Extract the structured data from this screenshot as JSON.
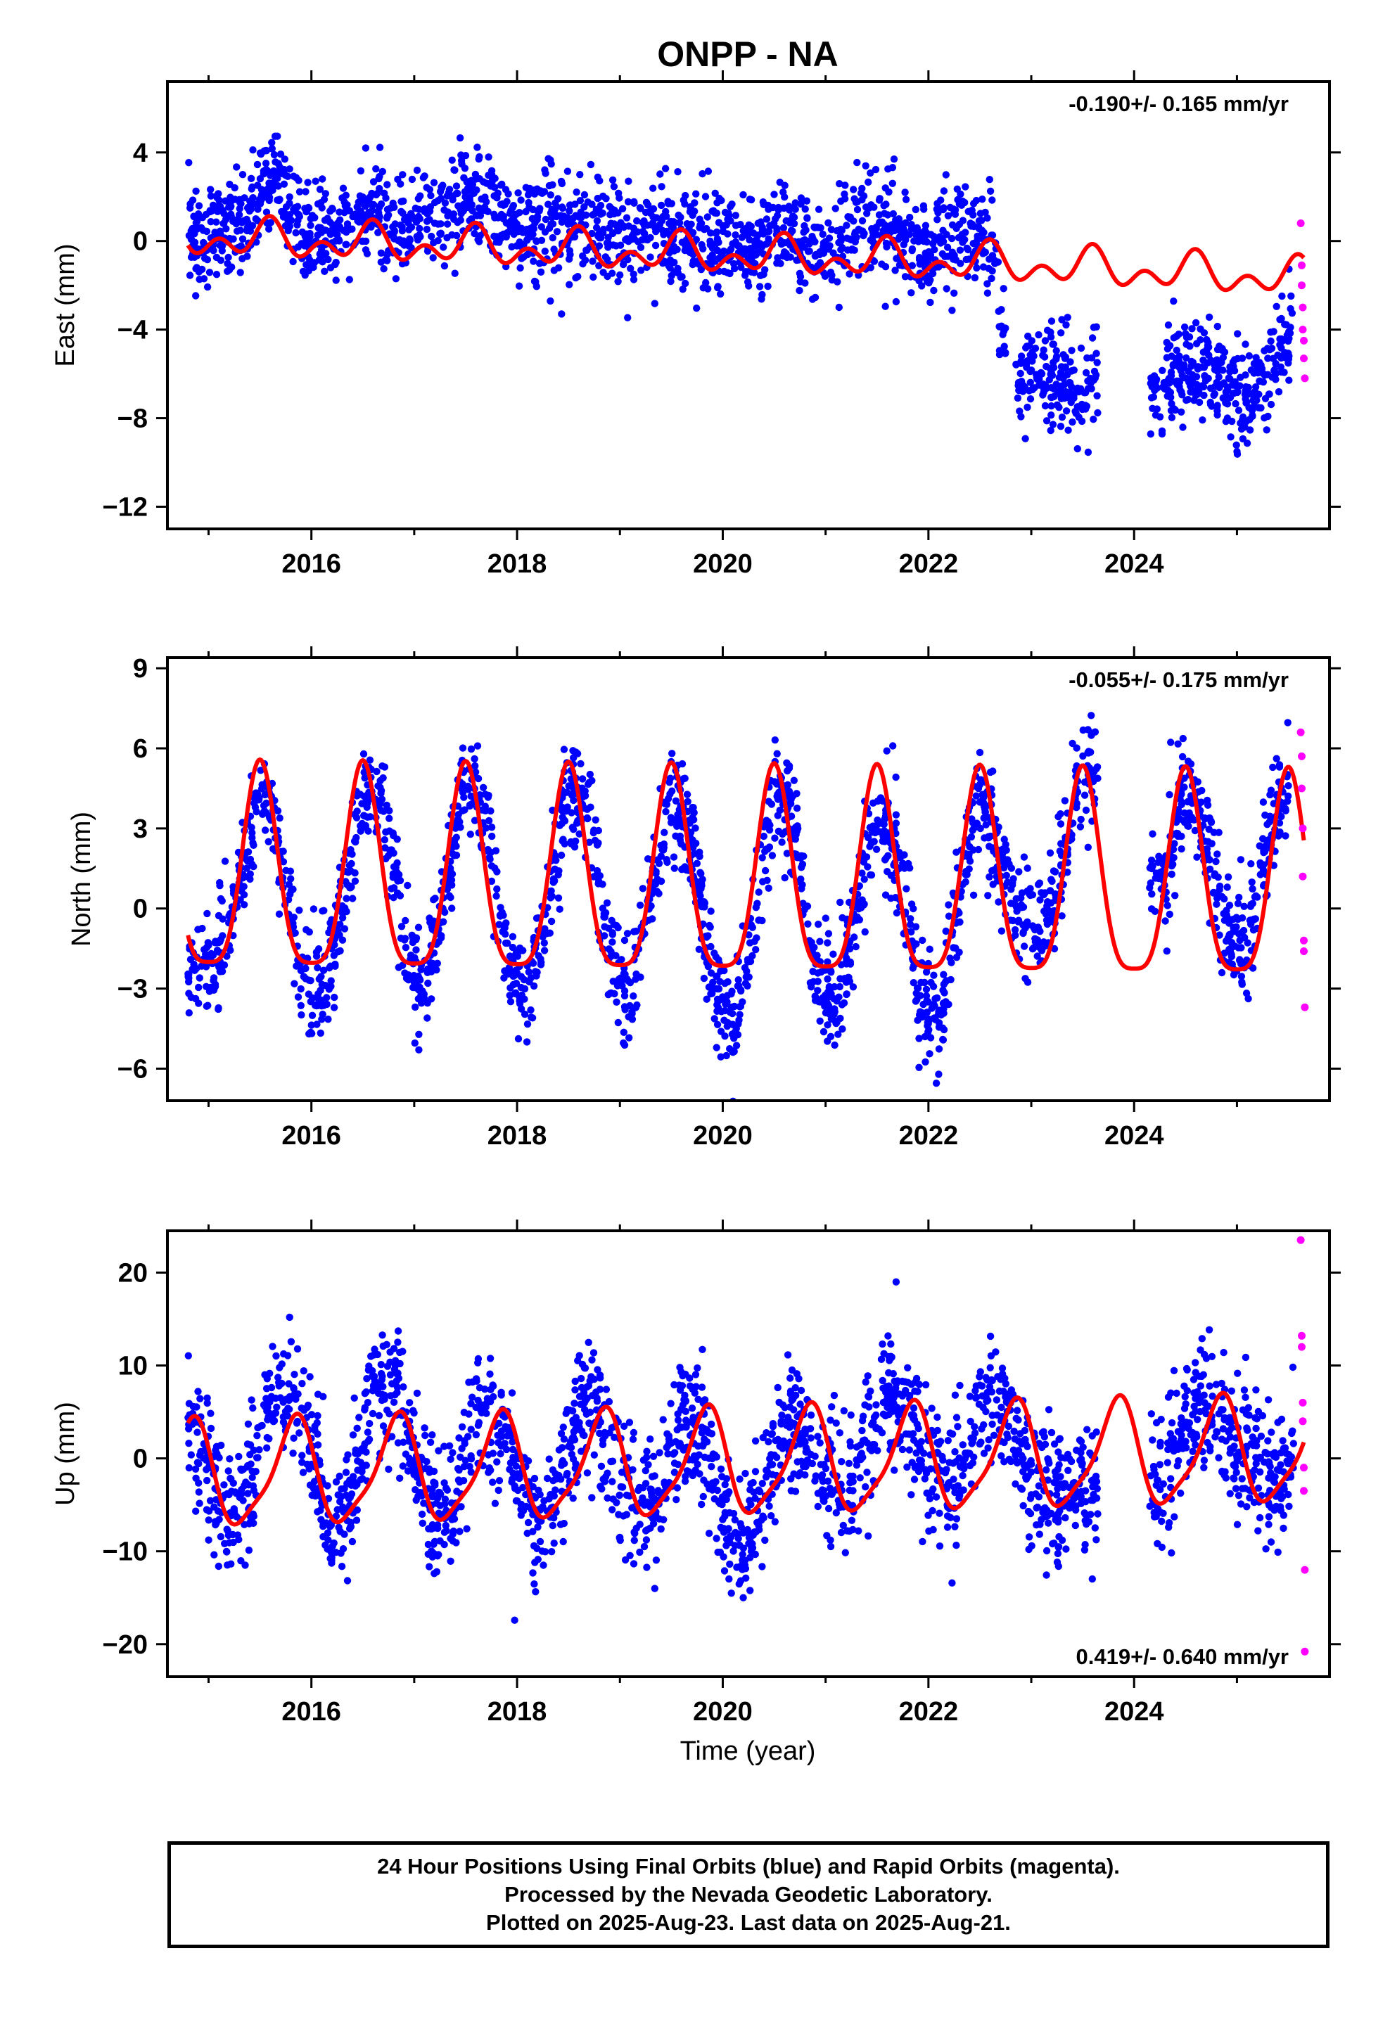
{
  "title": "ONPP - NA",
  "colors": {
    "final": "#0000ff",
    "rapid": "#ff00ff",
    "model": "#ff0000",
    "axis": "#000000"
  },
  "xlabel": "Time (year)",
  "footer": {
    "line1": "24 Hour Positions Using Final Orbits (blue) and Rapid Orbits (magenta).",
    "line2": "Processed by the Nevada Geodetic Laboratory.",
    "line3": "Plotted on 2025-Aug-23. Last data on 2025-Aug-21."
  },
  "chart_data": [
    {
      "type": "scatter",
      "ylabel": "East (mm)",
      "rate_label": "-0.190+/- 0.165 mm/yr",
      "rate_position": "top-right",
      "xlim": [
        2014.6,
        2025.9
      ],
      "ylim": [
        -13.0,
        7.2
      ],
      "x_ticks": [
        2016,
        2018,
        2020,
        2022,
        2024
      ],
      "y_ticks": [
        4,
        0,
        -4,
        -8,
        -12
      ],
      "series": [
        {
          "kind": "final",
          "x": [
            2014.8,
            2015.0,
            2015.2,
            2015.4,
            2015.55,
            2015.65,
            2015.8,
            2016.0,
            2016.2,
            2016.4,
            2016.6,
            2016.8,
            2017.0,
            2017.2,
            2017.4,
            2017.6,
            2017.8,
            2018.0,
            2018.2,
            2018.4,
            2018.6,
            2018.8,
            2019.0,
            2019.2,
            2019.4,
            2019.6,
            2019.8,
            2020.0,
            2020.2,
            2020.4,
            2020.6,
            2020.8,
            2021.0,
            2021.2,
            2021.4,
            2021.6,
            2021.8,
            2022.0,
            2022.2,
            2022.4,
            2022.6,
            2022.8,
            2023.0,
            2023.2,
            2023.4,
            2023.6,
            2024.2,
            2024.4,
            2024.6,
            2024.8,
            2025.0,
            2025.2,
            2025.4,
            2025.55
          ],
          "y": [
            0.5,
            0.3,
            0.6,
            1.0,
            2.5,
            3.0,
            1.5,
            0.0,
            0.4,
            0.8,
            1.6,
            0.5,
            0.8,
            1.2,
            1.5,
            2.0,
            0.8,
            0.3,
            0.5,
            1.0,
            0.5,
            0.2,
            0.3,
            0.4,
            0.6,
            0.2,
            0.1,
            0.0,
            -0.2,
            0.3,
            0.2,
            -0.3,
            -0.2,
            0.4,
            0.6,
            0.8,
            0.2,
            -0.5,
            0.6,
            0.5,
            0.3,
            -6.0,
            -6.3,
            -6.2,
            -6.5,
            -6.3,
            -6.8,
            -6.0,
            -5.8,
            -6.5,
            -7.0,
            -6.8,
            -5.0,
            -3.5
          ],
          "spread": 1.4
        },
        {
          "kind": "rapid",
          "x": [
            2025.62,
            2025.63,
            2025.63,
            2025.64,
            2025.64,
            2025.65,
            2025.65,
            2025.66
          ],
          "y": [
            0.8,
            -1.1,
            -2.0,
            -3.0,
            -4.0,
            -4.5,
            -5.3,
            -6.2
          ]
        },
        {
          "kind": "model",
          "offset": [
            [
              2014.8,
              0.15
            ],
            [
              2022.8,
              -1.05
            ],
            [
              2025.65,
              -1.7
            ]
          ],
          "amp1": 0.55,
          "phase1": 2015.58,
          "amp2": 0.55,
          "phase2": 2015.6
        }
      ]
    },
    {
      "type": "scatter",
      "ylabel": "North (mm)",
      "rate_label": "-0.055+/- 0.175 mm/yr",
      "rate_position": "top-right",
      "xlim": [
        2014.6,
        2025.9
      ],
      "ylim": [
        -7.2,
        9.4
      ],
      "x_ticks": [
        2016,
        2018,
        2020,
        2022,
        2024
      ],
      "y_ticks": [
        9,
        6,
        3,
        0,
        -3,
        -6
      ],
      "series": [
        {
          "kind": "final",
          "x": [
            2014.8,
            2015.0,
            2015.2,
            2015.4,
            2015.5,
            2015.7,
            2015.9,
            2016.1,
            2016.3,
            2016.5,
            2016.7,
            2016.9,
            2017.1,
            2017.3,
            2017.5,
            2017.7,
            2017.9,
            2018.1,
            2018.3,
            2018.5,
            2018.7,
            2018.9,
            2019.1,
            2019.3,
            2019.5,
            2019.7,
            2019.9,
            2020.1,
            2020.3,
            2020.5,
            2020.7,
            2020.9,
            2021.1,
            2021.3,
            2021.5,
            2021.7,
            2021.9,
            2022.1,
            2022.3,
            2022.5,
            2022.7,
            2022.9,
            2023.1,
            2023.3,
            2023.5,
            2024.3,
            2024.5,
            2024.7,
            2024.9,
            2025.1,
            2025.4,
            2025.5
          ],
          "y": [
            -2.0,
            -2.5,
            -0.5,
            2.5,
            4.5,
            2.0,
            -2.5,
            -3.0,
            0.0,
            4.5,
            4.0,
            -1.5,
            -3.0,
            0.5,
            5.0,
            3.5,
            -2.0,
            -3.0,
            0.0,
            4.5,
            3.5,
            -2.0,
            -3.5,
            0.5,
            4.0,
            2.5,
            -2.5,
            -4.5,
            -1.0,
            4.5,
            3.0,
            -2.5,
            -4.0,
            0.0,
            4.0,
            2.0,
            -3.0,
            -4.5,
            0.5,
            4.5,
            1.5,
            -0.5,
            -1.0,
            1.5,
            5.5,
            1.0,
            5.0,
            2.5,
            -1.0,
            -1.5,
            4.0,
            5.0
          ],
          "spread": 1.2
        },
        {
          "kind": "rapid",
          "x": [
            2025.62,
            2025.63,
            2025.63,
            2025.64,
            2025.64,
            2025.65,
            2025.65,
            2025.66
          ],
          "y": [
            6.6,
            5.7,
            4.5,
            3.0,
            1.2,
            -1.2,
            -1.6,
            -3.7
          ]
        },
        {
          "kind": "model",
          "offset": [
            [
              2014.8,
              0.9
            ],
            [
              2025.65,
              0.6
            ]
          ],
          "amp1": 3.8,
          "phase1": 2015.5,
          "amp2": 0.9,
          "phase2": 2015.5
        }
      ]
    },
    {
      "type": "scatter",
      "ylabel": "Up (mm)",
      "rate_label": "0.419+/- 0.640 mm/yr",
      "rate_position": "bottom-right",
      "xlim": [
        2014.6,
        2025.9
      ],
      "ylim": [
        -23.5,
        24.5
      ],
      "x_ticks": [
        2016,
        2018,
        2020,
        2022,
        2024
      ],
      "y_ticks": [
        20,
        10,
        0,
        -10,
        -20
      ],
      "series": [
        {
          "kind": "final",
          "x": [
            2014.8,
            2015.0,
            2015.2,
            2015.4,
            2015.6,
            2015.8,
            2016.0,
            2016.2,
            2016.4,
            2016.6,
            2016.8,
            2017.0,
            2017.2,
            2017.4,
            2017.6,
            2017.8,
            2018.0,
            2018.2,
            2018.4,
            2018.6,
            2018.8,
            2019.0,
            2019.2,
            2019.4,
            2019.6,
            2019.8,
            2020.0,
            2020.2,
            2020.4,
            2020.6,
            2020.8,
            2021.0,
            2021.2,
            2021.4,
            2021.6,
            2021.8,
            2022.0,
            2022.2,
            2022.4,
            2022.6,
            2022.8,
            2023.0,
            2023.2,
            2023.4,
            2024.3,
            2024.5,
            2024.7,
            2024.9,
            2025.4,
            2025.55
          ],
          "y": [
            6.0,
            -2.0,
            -6.0,
            -2.0,
            6.0,
            8.0,
            2.0,
            -7.0,
            -4.0,
            8.0,
            7.0,
            1.0,
            -6.0,
            -5.0,
            5.0,
            4.0,
            -2.0,
            -8.0,
            -4.0,
            5.0,
            4.0,
            -3.0,
            -6.0,
            -3.0,
            4.0,
            3.0,
            -6.0,
            -10.0,
            -3.0,
            3.0,
            3.0,
            -3.0,
            -4.0,
            0.0,
            8.0,
            4.0,
            0.0,
            -3.0,
            2.0,
            7.0,
            4.0,
            -2.0,
            -5.0,
            -3.0,
            -2.0,
            5.0,
            6.0,
            2.0,
            -4.0,
            3.0
          ],
          "spread": 4.2
        },
        {
          "kind": "rapid",
          "x": [
            2025.62,
            2025.63,
            2025.63,
            2025.64,
            2025.64,
            2025.65,
            2025.65,
            2025.66,
            2025.66
          ],
          "y": [
            23.5,
            13.2,
            12.0,
            6.0,
            4.0,
            -1.0,
            -3.5,
            -12.0,
            -20.8
          ]
        },
        {
          "kind": "model",
          "offset": [
            [
              2014.8,
              -2.0
            ],
            [
              2025.65,
              0.7
            ]
          ],
          "amp1": 5.5,
          "phase1": 2015.83,
          "amp2": 1.3,
          "phase2": 2015.9
        }
      ]
    }
  ]
}
